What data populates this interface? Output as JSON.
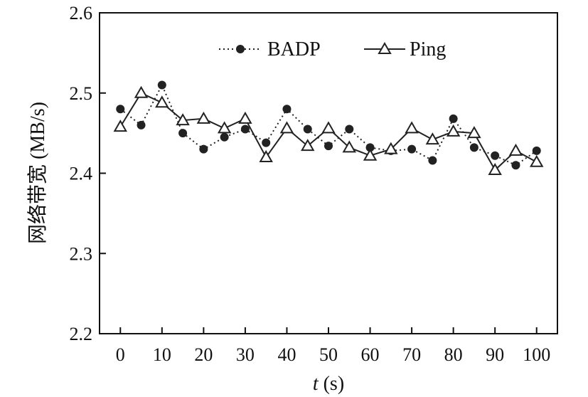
{
  "chart_data": {
    "type": "line",
    "title": "",
    "xlabel_var": "t",
    "xlabel_unit": " (s)",
    "ylabel": "网络带宽 (MB/s)",
    "xlim": [
      -5,
      105
    ],
    "ylim": [
      2.2,
      2.6
    ],
    "xticks": [
      0,
      10,
      20,
      30,
      40,
      50,
      60,
      70,
      80,
      90,
      100
    ],
    "yticks": [
      2.2,
      2.3,
      2.4,
      2.5,
      2.6
    ],
    "ytick_labels": [
      "2.2",
      "2.3",
      "2.4",
      "2.5",
      "2.6"
    ],
    "grid": false,
    "legend_position": "top-center",
    "series": [
      {
        "name": "BADP",
        "line_style": "dotted",
        "marker": "filled-circle",
        "color": "#222222",
        "x": [
          0,
          5,
          10,
          15,
          20,
          25,
          30,
          35,
          40,
          45,
          50,
          55,
          60,
          65,
          70,
          75,
          80,
          85,
          90,
          95,
          100
        ],
        "y": [
          2.48,
          2.46,
          2.51,
          2.45,
          2.43,
          2.445,
          2.455,
          2.438,
          2.48,
          2.455,
          2.434,
          2.455,
          2.432,
          2.428,
          2.43,
          2.416,
          2.468,
          2.432,
          2.422,
          2.41,
          2.428
        ]
      },
      {
        "name": "Ping",
        "line_style": "solid",
        "marker": "open-triangle",
        "color": "#222222",
        "x": [
          0,
          5,
          10,
          15,
          20,
          25,
          30,
          35,
          40,
          45,
          50,
          55,
          60,
          65,
          70,
          75,
          80,
          85,
          90,
          95,
          100
        ],
        "y": [
          2.458,
          2.5,
          2.488,
          2.466,
          2.468,
          2.456,
          2.468,
          2.42,
          2.456,
          2.434,
          2.456,
          2.432,
          2.422,
          2.43,
          2.456,
          2.442,
          2.452,
          2.45,
          2.404,
          2.428,
          2.414
        ]
      }
    ]
  }
}
